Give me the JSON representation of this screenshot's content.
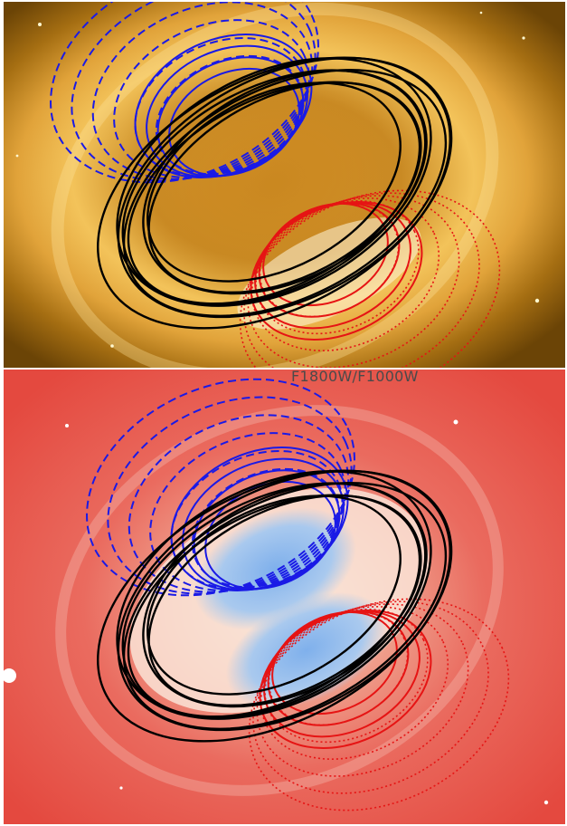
{
  "figure": {
    "bottom_panel_label": "F1800W/F1000W",
    "colors": {
      "approaching_rings": "#1a1ae6",
      "receding_rings": "#e61414",
      "equatorial_rings": "#000000",
      "top_panel_sky": "#8a5a08",
      "top_panel_glow": "#f3b640",
      "bottom_panel_sky": "#e8564c",
      "bottom_panel_glow": "#f6c9b8",
      "bottom_panel_core": "#8fb8ea"
    }
  }
}
